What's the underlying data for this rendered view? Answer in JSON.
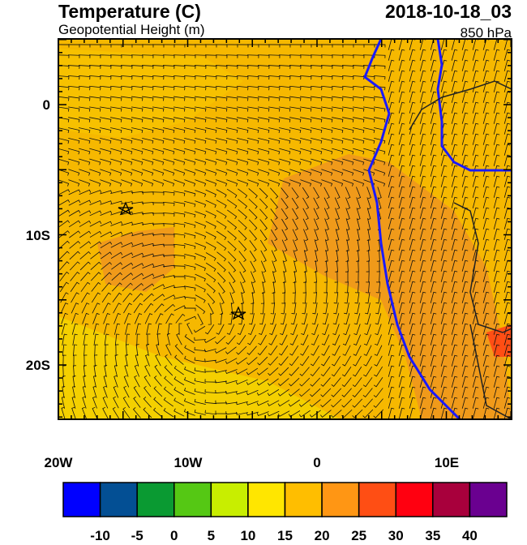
{
  "header": {
    "title": "Temperature (C)",
    "subtitle": "Geopotential Height (m)",
    "date": "2018-10-18_03",
    "level": "850 hPa"
  },
  "map": {
    "lat_labels": [
      "0",
      "10S",
      "20S"
    ],
    "lon_labels": [
      "20W",
      "10W",
      "0",
      "10E"
    ]
  },
  "colorbar": {
    "colors": [
      "#0000ff",
      "#034f94",
      "#0a9a32",
      "#55c814",
      "#c8ee00",
      "#ffe600",
      "#ffbe00",
      "#ff9614",
      "#ff4e14",
      "#ff0010",
      "#a8003c",
      "#6a0090"
    ],
    "labels": [
      "-10",
      "-5",
      "0",
      "5",
      "10",
      "15",
      "20",
      "25",
      "30",
      "35",
      "40"
    ]
  }
}
